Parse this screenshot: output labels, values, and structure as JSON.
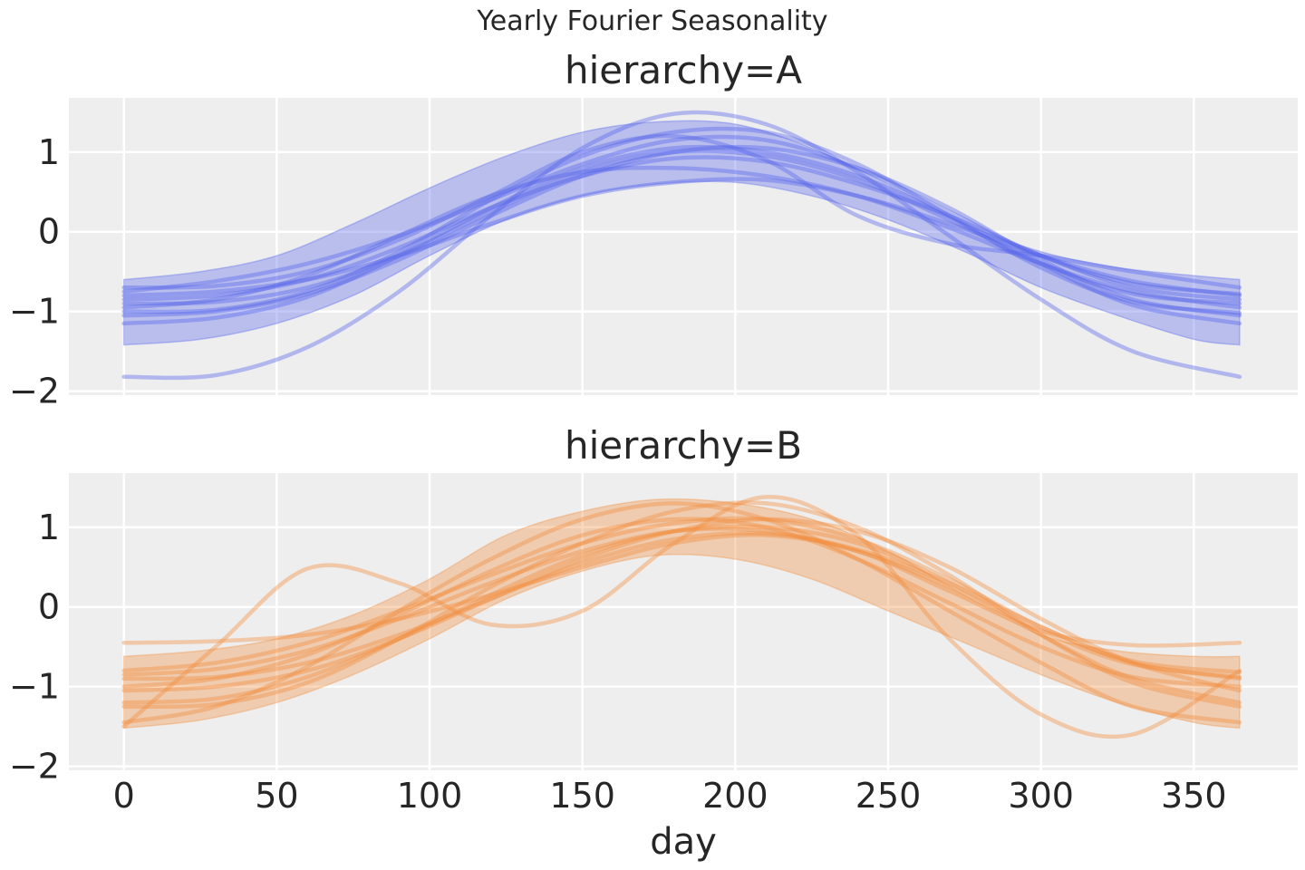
{
  "chart_data": {
    "type": "line",
    "title": "Yearly Fourier Seasonality",
    "xlabel": "day",
    "xlim": [
      -18,
      384
    ],
    "x_ticks": [
      "0",
      "50",
      "100",
      "150",
      "200",
      "250",
      "300",
      "350"
    ],
    "x_tick_values": [
      0,
      50,
      100,
      150,
      200,
      250,
      300,
      350
    ],
    "y_ticks": [
      "1",
      "0",
      "−1",
      "−2"
    ],
    "y_tick_values": [
      1,
      0,
      -1,
      -2
    ],
    "ylim": [
      -2.05,
      1.68
    ],
    "grid": true,
    "legend": "none",
    "panels": [
      {
        "title": "hierarchy=A",
        "color": "#5563ea",
        "band": {
          "description": "94% HDI",
          "x": [
            0,
            25,
            50,
            75,
            100,
            125,
            150,
            175,
            200,
            225,
            250,
            275,
            300,
            325,
            350,
            365
          ],
          "lower": [
            -1.42,
            -1.35,
            -1.15,
            -0.8,
            -0.3,
            0.15,
            0.45,
            0.6,
            0.62,
            0.45,
            0.15,
            -0.25,
            -0.7,
            -1.05,
            -1.35,
            -1.42
          ],
          "upper": [
            -0.6,
            -0.5,
            -0.3,
            0.1,
            0.55,
            0.95,
            1.25,
            1.38,
            1.35,
            1.05,
            0.6,
            0.1,
            -0.25,
            -0.45,
            -0.55,
            -0.6
          ]
        },
        "samples": [
          {
            "x": [
              0,
              30,
              60,
              90,
              120,
              150,
              180,
              210,
              240,
              270,
              300,
              330,
              365
            ],
            "y": [
              -1.82,
              -1.8,
              -1.45,
              -0.75,
              0.2,
              1.05,
              1.48,
              1.35,
              0.75,
              -0.05,
              -0.85,
              -1.5,
              -1.82
            ]
          },
          {
            "x": [
              0,
              30,
              60,
              90,
              120,
              150,
              180,
              210,
              240,
              270,
              300,
              330,
              365
            ],
            "y": [
              -0.75,
              -0.62,
              -0.4,
              -0.05,
              0.4,
              0.85,
              1.15,
              1.15,
              0.8,
              0.25,
              -0.3,
              -0.65,
              -0.78
            ]
          },
          {
            "x": [
              0,
              30,
              60,
              90,
              120,
              150,
              180,
              210,
              240,
              270,
              300,
              330,
              365
            ],
            "y": [
              -1.0,
              -0.98,
              -0.75,
              -0.25,
              0.4,
              0.95,
              1.25,
              1.25,
              0.85,
              0.2,
              -0.45,
              -0.88,
              -1.02
            ]
          },
          {
            "x": [
              0,
              30,
              60,
              90,
              120,
              150,
              180,
              210,
              240,
              270,
              300,
              330,
              365
            ],
            "y": [
              -0.85,
              -0.8,
              -0.6,
              -0.2,
              0.3,
              0.7,
              0.92,
              0.88,
              0.6,
              0.2,
              -0.3,
              -0.7,
              -0.85
            ]
          },
          {
            "x": [
              0,
              30,
              60,
              90,
              120,
              150,
              180,
              210,
              240,
              270,
              300,
              330,
              365
            ],
            "y": [
              -1.15,
              -1.08,
              -0.82,
              -0.3,
              0.3,
              0.8,
              1.05,
              1.0,
              0.7,
              0.2,
              -0.4,
              -0.92,
              -1.15
            ]
          },
          {
            "x": [
              0,
              30,
              60,
              90,
              120,
              150,
              180,
              210,
              240,
              270,
              300,
              330,
              365
            ],
            "y": [
              -0.7,
              -0.68,
              -0.5,
              -0.1,
              0.45,
              1.0,
              1.2,
              0.9,
              0.2,
              -0.15,
              -0.3,
              -0.5,
              -0.7
            ]
          },
          {
            "x": [
              0,
              30,
              60,
              90,
              120,
              150,
              180,
              210,
              240,
              270,
              300,
              330,
              365
            ],
            "y": [
              -0.95,
              -0.85,
              -0.55,
              -0.05,
              0.45,
              0.75,
              0.8,
              0.7,
              0.45,
              0.05,
              -0.4,
              -0.75,
              -0.95
            ]
          },
          {
            "x": [
              0,
              30,
              60,
              90,
              120,
              150,
              180,
              210,
              240,
              270,
              300,
              330,
              365
            ],
            "y": [
              -0.8,
              -0.75,
              -0.6,
              -0.3,
              0.1,
              0.45,
              0.62,
              0.65,
              0.45,
              0.1,
              -0.3,
              -0.62,
              -0.8
            ]
          },
          {
            "x": [
              0,
              30,
              60,
              90,
              120,
              150,
              180,
              210,
              240,
              270,
              300,
              330,
              365
            ],
            "y": [
              -1.05,
              -1.0,
              -0.78,
              -0.35,
              0.2,
              0.7,
              1.0,
              1.05,
              0.8,
              0.3,
              -0.35,
              -0.85,
              -1.05
            ]
          },
          {
            "x": [
              0,
              30,
              60,
              90,
              120,
              150,
              180,
              210,
              240,
              270,
              300,
              330,
              365
            ],
            "y": [
              -0.9,
              -0.88,
              -0.7,
              -0.3,
              0.25,
              0.75,
              1.0,
              0.95,
              0.65,
              0.15,
              -0.4,
              -0.78,
              -0.9
            ]
          }
        ]
      },
      {
        "title": "hierarchy=B",
        "color": "#f28b3c",
        "band": {
          "description": "94% HDI",
          "x": [
            0,
            25,
            50,
            75,
            100,
            125,
            150,
            175,
            200,
            225,
            250,
            275,
            300,
            325,
            350,
            365
          ],
          "lower": [
            -1.52,
            -1.42,
            -1.2,
            -0.85,
            -0.4,
            0.1,
            0.45,
            0.65,
            0.6,
            0.35,
            -0.05,
            -0.45,
            -0.85,
            -1.2,
            -1.45,
            -1.52
          ],
          "upper": [
            -0.62,
            -0.55,
            -0.4,
            -0.1,
            0.35,
            0.9,
            1.2,
            1.35,
            1.3,
            1.1,
            0.7,
            0.15,
            -0.35,
            -0.55,
            -0.62,
            -0.62
          ]
        },
        "samples": [
          {
            "x": [
              0,
              30,
              60,
              90,
              120,
              150,
              180,
              210,
              240,
              270,
              300,
              330,
              365
            ],
            "y": [
              -1.5,
              -0.5,
              0.48,
              0.3,
              -0.22,
              -0.05,
              0.8,
              1.38,
              0.9,
              -0.4,
              -1.35,
              -1.6,
              -0.8
            ]
          },
          {
            "x": [
              0,
              30,
              60,
              90,
              120,
              150,
              180,
              210,
              240,
              270,
              300,
              330,
              365
            ],
            "y": [
              -0.45,
              -0.43,
              -0.35,
              -0.15,
              0.15,
              0.5,
              0.8,
              0.9,
              0.7,
              0.2,
              -0.3,
              -0.48,
              -0.45
            ]
          },
          {
            "x": [
              0,
              30,
              60,
              90,
              120,
              150,
              180,
              210,
              240,
              270,
              300,
              330,
              365
            ],
            "y": [
              -1.25,
              -1.22,
              -0.95,
              -0.4,
              0.25,
              0.8,
              1.2,
              1.3,
              1.0,
              0.4,
              -0.35,
              -0.95,
              -1.25
            ]
          },
          {
            "x": [
              0,
              30,
              60,
              90,
              120,
              150,
              180,
              210,
              240,
              270,
              300,
              330,
              365
            ],
            "y": [
              -0.85,
              -0.78,
              -0.55,
              -0.15,
              0.3,
              0.7,
              0.95,
              0.95,
              0.7,
              0.25,
              -0.3,
              -0.72,
              -0.88
            ]
          },
          {
            "x": [
              0,
              30,
              60,
              90,
              120,
              150,
              180,
              210,
              240,
              270,
              300,
              330,
              365
            ],
            "y": [
              -1.0,
              -0.9,
              -0.6,
              -0.1,
              0.45,
              0.9,
              1.1,
              1.0,
              0.6,
              0.05,
              -0.5,
              -0.88,
              -1.0
            ]
          },
          {
            "x": [
              0,
              30,
              60,
              90,
              120,
              150,
              180,
              210,
              240,
              270,
              300,
              330,
              365
            ],
            "y": [
              -1.45,
              -1.25,
              -0.75,
              -0.05,
              0.6,
              1.1,
              1.3,
              1.1,
              0.6,
              -0.05,
              -0.7,
              -1.25,
              -1.45
            ]
          },
          {
            "x": [
              0,
              30,
              60,
              90,
              120,
              150,
              180,
              210,
              240,
              270,
              300,
              330,
              365
            ],
            "y": [
              -0.9,
              -0.88,
              -0.7,
              -0.35,
              0.1,
              0.55,
              0.85,
              0.92,
              0.72,
              0.3,
              -0.25,
              -0.7,
              -0.9
            ]
          },
          {
            "x": [
              0,
              30,
              60,
              90,
              120,
              150,
              180,
              210,
              240,
              270,
              300,
              330,
              365
            ],
            "y": [
              -1.2,
              -1.15,
              -0.88,
              -0.4,
              0.15,
              0.65,
              0.95,
              1.0,
              0.8,
              0.3,
              -0.35,
              -0.9,
              -1.2
            ]
          },
          {
            "x": [
              0,
              30,
              60,
              90,
              120,
              150,
              180,
              210,
              240,
              270,
              300,
              330,
              365
            ],
            "y": [
              -0.8,
              -0.7,
              -0.45,
              -0.05,
              0.4,
              0.8,
              1.05,
              1.1,
              0.85,
              0.35,
              -0.25,
              -0.68,
              -0.82
            ]
          },
          {
            "x": [
              0,
              30,
              60,
              90,
              120,
              150,
              180,
              210,
              240,
              270,
              300,
              330,
              365
            ],
            "y": [
              -1.05,
              -1.0,
              -0.8,
              -0.4,
              0.1,
              0.6,
              0.95,
              1.1,
              0.95,
              0.5,
              -0.15,
              -0.7,
              -1.05
            ]
          }
        ]
      }
    ]
  }
}
